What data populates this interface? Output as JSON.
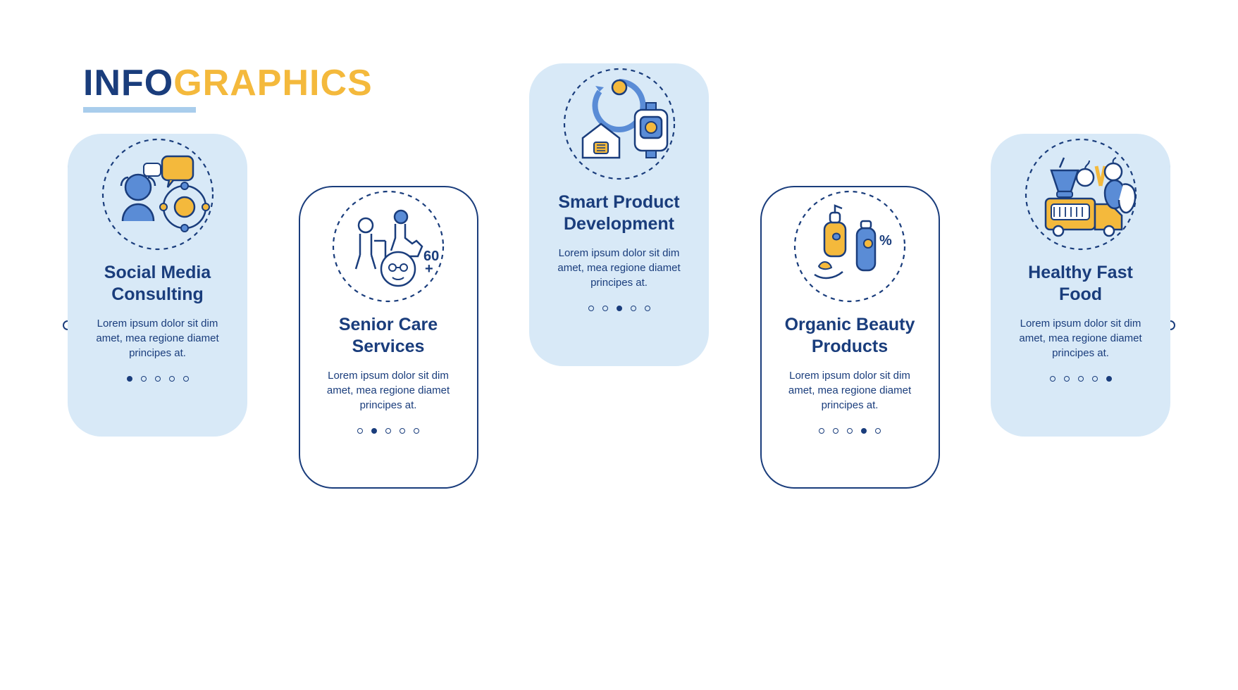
{
  "title": {
    "part1": "INFO",
    "part2": "GRAPHICS"
  },
  "colors": {
    "primary": "#1a3d7c",
    "accent": "#f4b93c",
    "light": "#a9cdec",
    "panel": "#d8e9f7",
    "bg": "#ffffff"
  },
  "body_text": "Lorem ipsum dolor sit dim amet, mea regione diamet principes at.",
  "cards": [
    {
      "title": "Social Media Consulting",
      "variant": "filled",
      "pos": "up",
      "active_dot": 0,
      "icon": "social"
    },
    {
      "title": "Senior Care Services",
      "variant": "outline",
      "pos": "down",
      "active_dot": 1,
      "icon": "senior"
    },
    {
      "title": "Smart Product Development",
      "variant": "filled",
      "pos": "mid",
      "active_dot": 2,
      "icon": "smart"
    },
    {
      "title": "Organic Beauty Products",
      "variant": "outline",
      "pos": "down",
      "active_dot": 3,
      "icon": "beauty"
    },
    {
      "title": "Healthy Fast Food",
      "variant": "filled",
      "pos": "up",
      "active_dot": 4,
      "icon": "food"
    }
  ],
  "dot_count": 5,
  "icon_style": {
    "stroke": "#1a3d7c",
    "fill_blue": "#5a8cd6",
    "fill_yellow": "#f4b93c",
    "fill_white": "#ffffff",
    "dash": "5,5"
  }
}
